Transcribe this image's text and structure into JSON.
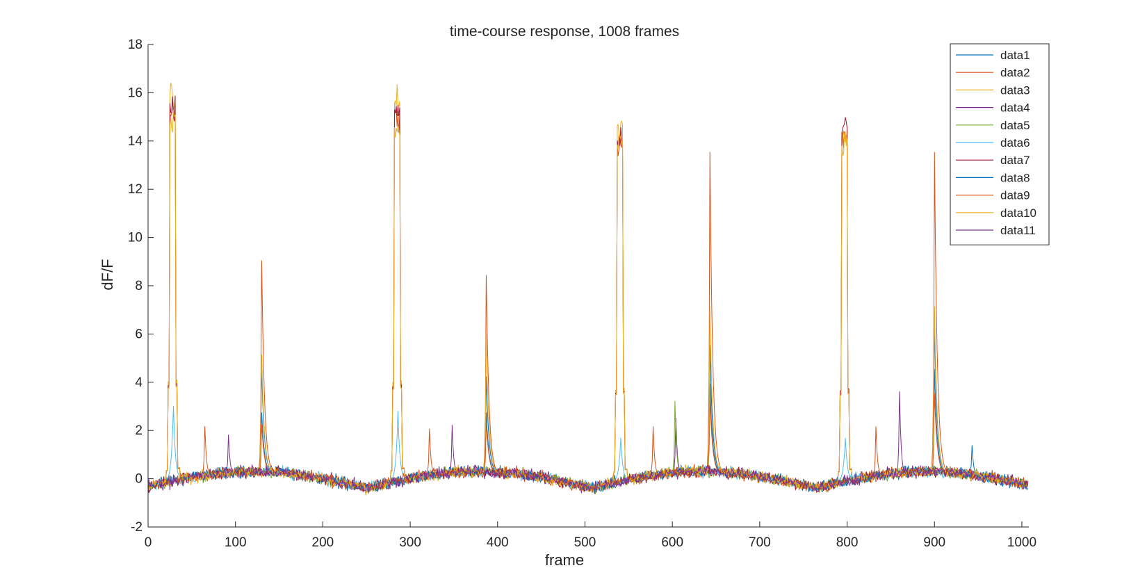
{
  "chart_data": {
    "type": "line",
    "title": "time-course response, 1008 frames",
    "xlabel": "frame",
    "ylabel": "dF/F",
    "xlim": [
      0,
      1008
    ],
    "ylim": [
      -2,
      18
    ],
    "xticks": [
      0,
      100,
      200,
      300,
      400,
      500,
      600,
      700,
      800,
      900,
      1000
    ],
    "yticks": [
      -2,
      0,
      2,
      4,
      6,
      8,
      10,
      12,
      14,
      16,
      18
    ],
    "grid": false,
    "legend_position": "top-right",
    "peaks": {
      "large_events": [
        {
          "frame": 28,
          "values": {
            "data3": 16.6,
            "data7": 16.0,
            "data10": 15.5,
            "data2": 15.8,
            "data6": 3.1
          }
        },
        {
          "frame": 285,
          "values": {
            "data3": 16.5,
            "data7": 15.8,
            "data10": 15.3,
            "data2": 15.5,
            "data6": 2.9
          }
        },
        {
          "frame": 540,
          "values": {
            "data3": 15.3,
            "data7": 14.8,
            "data10": 14.6,
            "data2": 14.5,
            "data6": 1.8
          }
        },
        {
          "frame": 797,
          "values": {
            "data7": 15.2,
            "data3": 14.8,
            "data10": 14.4,
            "data2": 14.6,
            "data6": 1.8
          }
        }
      ],
      "medium_events": [
        {
          "frame": 130,
          "values": {
            "data2": 8.9,
            "data10": 5.0,
            "data1": 4.4,
            "data8": 2.6,
            "data9": 2.1
          }
        },
        {
          "frame": 387,
          "values": {
            "data2": 8.3,
            "data10": 5.9,
            "data1": 4.1,
            "data8": 2.6,
            "data9": 2.2
          }
        },
        {
          "frame": 643,
          "values": {
            "data2": 13.4,
            "data10": 7.0,
            "data1": 5.4,
            "data8": 3.8,
            "data9": 3.2
          }
        },
        {
          "frame": 900,
          "values": {
            "data2": 13.4,
            "data10": 7.0,
            "data1": 6.3,
            "data8": 4.4,
            "data9": 3.4
          }
        }
      ],
      "small_events": [
        {
          "frame": 65,
          "series": "data9",
          "value": 2.1
        },
        {
          "frame": 92,
          "series": "data4",
          "value": 1.7
        },
        {
          "frame": 322,
          "series": "data9",
          "value": 2.0
        },
        {
          "frame": 348,
          "series": "data4",
          "value": 2.1
        },
        {
          "frame": 578,
          "series": "data9",
          "value": 2.1
        },
        {
          "frame": 603,
          "series": "data5",
          "value": 3.1
        },
        {
          "frame": 604,
          "series": "data4",
          "value": 2.4
        },
        {
          "frame": 833,
          "series": "data9",
          "value": 2.1
        },
        {
          "frame": 860,
          "series": "data4",
          "value": 3.5
        },
        {
          "frame": 943,
          "series": "data8",
          "value": 1.3
        }
      ]
    },
    "baseline": {
      "low_frames": [
        250,
        510,
        770
      ],
      "low_value": -0.5,
      "high_value": 0.3,
      "noise": 0.22
    },
    "series": [
      {
        "name": "data1",
        "color": "#0072BD"
      },
      {
        "name": "data2",
        "color": "#D95319"
      },
      {
        "name": "data3",
        "color": "#EDB120"
      },
      {
        "name": "data4",
        "color": "#7E2F8E"
      },
      {
        "name": "data5",
        "color": "#77AC30"
      },
      {
        "name": "data6",
        "color": "#4DBEEE"
      },
      {
        "name": "data7",
        "color": "#A2142F"
      },
      {
        "name": "data8",
        "color": "#0072BD"
      },
      {
        "name": "data9",
        "color": "#D95319"
      },
      {
        "name": "data10",
        "color": "#EDB120"
      },
      {
        "name": "data11",
        "color": "#7E2F8E"
      }
    ]
  }
}
